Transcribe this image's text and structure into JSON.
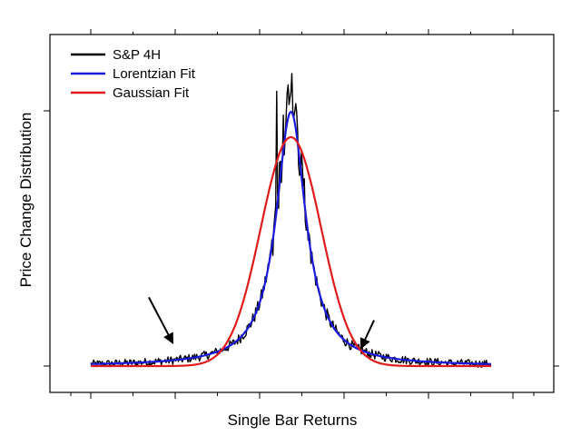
{
  "chart_data": {
    "type": "line",
    "title": "",
    "xlabel": "Single Bar Returns",
    "ylabel": "Price Change Distribution",
    "xlim": [
      -0.2,
      0.2
    ],
    "ylim": [
      -0.09,
      1.15
    ],
    "x_ticks_shown": false,
    "y_ticks_shown": false,
    "grid": false,
    "legend_position": "top-left",
    "series": [
      {
        "name": "S&P 4H",
        "color": "#000000",
        "type": "noisy-histogram",
        "center": 0.0,
        "peak": 1.15,
        "gamma": 0.018
      },
      {
        "name": "Lorentzian Fit",
        "color": "#1a1adc",
        "type": "lorentzian",
        "center": 0.0,
        "amplitude": 1.0,
        "gamma": 0.018
      },
      {
        "name": "Gaussian Fit",
        "color": "#e01b1b",
        "type": "gaussian",
        "center": 0.0,
        "amplitude": 0.9,
        "sigma": 0.03
      }
    ],
    "annotations": [
      {
        "type": "arrow",
        "label": "",
        "from": [
          -0.142,
          0.27
        ],
        "to": [
          -0.118,
          0.09
        ]
      },
      {
        "type": "arrow",
        "label": "",
        "from": [
          0.083,
          0.18
        ],
        "to": [
          0.07,
          0.07
        ]
      }
    ]
  }
}
